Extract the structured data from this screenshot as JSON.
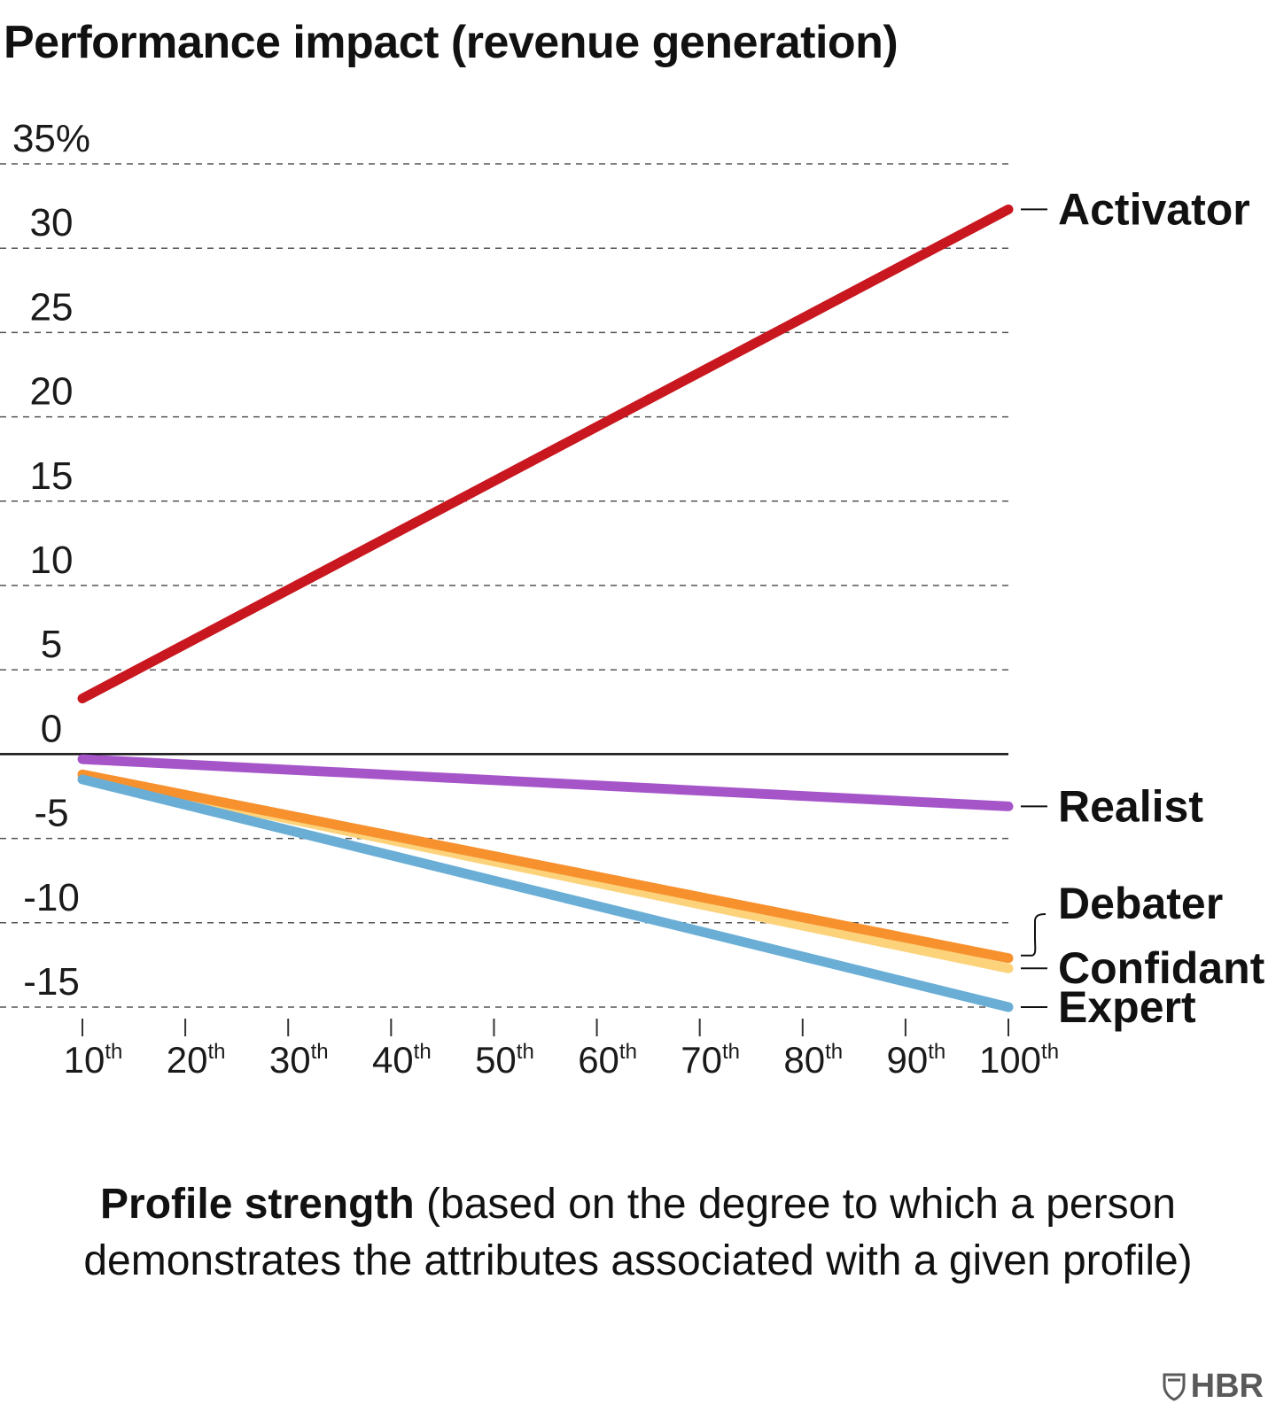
{
  "chart_data": {
    "type": "line",
    "title": "Performance impact (revenue generation)",
    "ylabel": "",
    "ylim": [
      -15,
      35
    ],
    "y_ticks": [
      35,
      30,
      25,
      20,
      15,
      10,
      5,
      0,
      -5,
      -10,
      -15
    ],
    "y_tick_labels": [
      "35%",
      "30",
      "25",
      "20",
      "15",
      "10",
      "5",
      "0",
      "-5",
      "-10",
      "-15"
    ],
    "x": [
      10,
      100
    ],
    "x_ticks": [
      {
        "num": "10",
        "sup": "th"
      },
      {
        "num": "20",
        "sup": "th"
      },
      {
        "num": "30",
        "sup": "th"
      },
      {
        "num": "40",
        "sup": "th"
      },
      {
        "num": "50",
        "sup": "th"
      },
      {
        "num": "60",
        "sup": "th"
      },
      {
        "num": "70",
        "sup": "th"
      },
      {
        "num": "80",
        "sup": "th"
      },
      {
        "num": "90",
        "sup": "th"
      },
      {
        "num": "100",
        "sup": "th"
      }
    ],
    "xlabel_bold": "Profile strength",
    "xlabel_rest_line1": " (based on the degree to which a person",
    "xlabel_rest_line2": "demonstrates the attributes associated with a given profile)",
    "grid": "dashed horizontal",
    "series": [
      {
        "name": "Activator",
        "color": "#c8171e",
        "values": [
          3.3,
          32.3
        ]
      },
      {
        "name": "Realist",
        "color": "#a655c9",
        "values": [
          -0.3,
          -3.1
        ]
      },
      {
        "name": "Confidant",
        "color": "#fcd27b",
        "values": [
          -1.3,
          -12.7
        ]
      },
      {
        "name": "Debater",
        "color": "#f7912e",
        "values": [
          -1.2,
          -12.1
        ]
      },
      {
        "name": "Expert",
        "color": "#6aaed6",
        "values": [
          -1.5,
          -15.0
        ]
      }
    ]
  },
  "brand": {
    "label": "HBR",
    "icon": "shield-icon"
  }
}
